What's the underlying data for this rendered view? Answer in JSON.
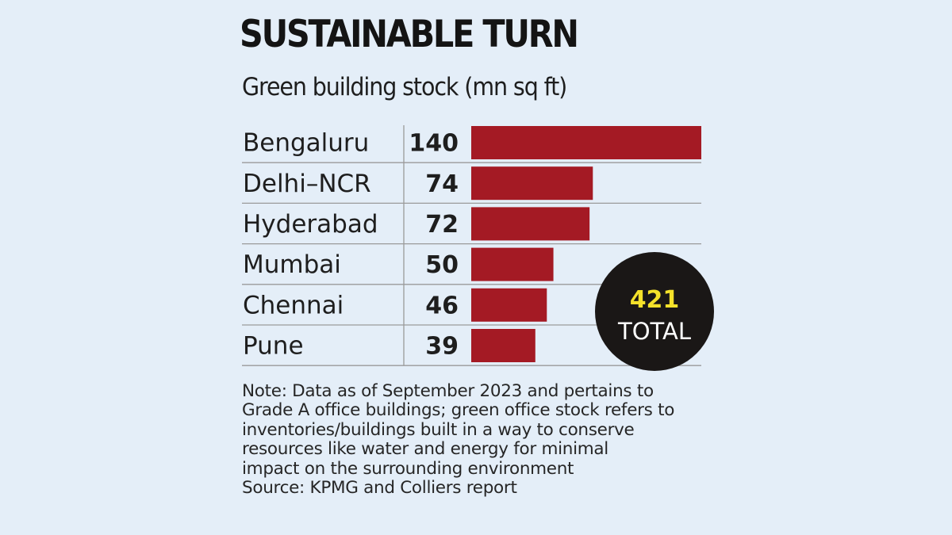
{
  "chart_data": {
    "type": "bar",
    "orientation": "horizontal",
    "title": "SUSTAINABLE TURN",
    "subtitle": "Green building stock (mn sq ft)",
    "categories": [
      "Bengaluru",
      "Delhi–NCR",
      "Hyderabad",
      "Mumbai",
      "Chennai",
      "Pune"
    ],
    "values": [
      140,
      74,
      72,
      50,
      46,
      39
    ],
    "xlim": [
      0,
      140
    ],
    "total": {
      "value": "421",
      "label": "TOTAL"
    },
    "colors": {
      "bar": "#a41a24",
      "badge": "#1a1716",
      "badge_value": "#f4e12a",
      "background": "#e4eef8"
    }
  },
  "note": {
    "lines": [
      "Note: Data as of September 2023 and pertains to",
      "Grade A office buildings; green office stock refers to",
      "inventories/buildings built in a way to conserve",
      "resources like water and energy for minimal",
      "impact on the surrounding environment"
    ],
    "source": "Source: KPMG and Colliers report"
  }
}
